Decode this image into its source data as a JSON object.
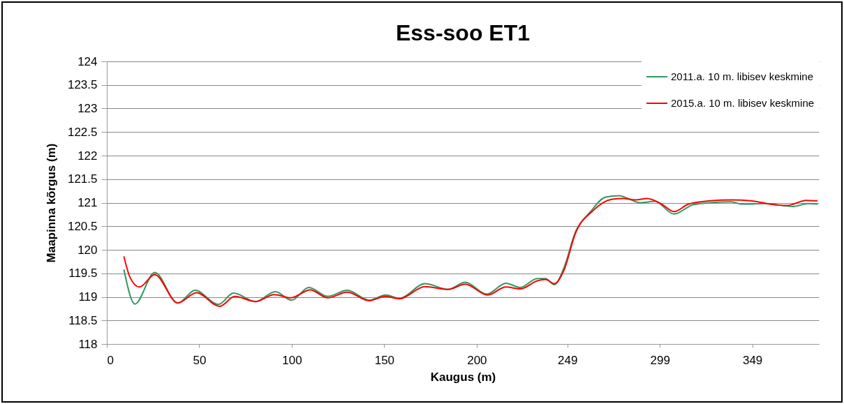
{
  "chart_data": {
    "type": "line",
    "title": "Ess-soo ET1",
    "xlabel": "Kaugus  (m)",
    "ylabel": "Maapinna kõrgus (m)",
    "xlim": [
      0,
      385
    ],
    "xticks": [
      0,
      50,
      100,
      150,
      200,
      249,
      299,
      349
    ],
    "ylim": [
      118,
      124
    ],
    "yticks": [
      118,
      118.5,
      119,
      119.5,
      120,
      120.5,
      121,
      121.5,
      122,
      122.5,
      123,
      123.5,
      124
    ],
    "grid": "y",
    "legend": "top right",
    "marker": "none",
    "line_style": "solid",
    "series": [
      {
        "name": "2011.a. 10 m. libisev keskmine",
        "color": "#2e9a5e",
        "x": [
          9.3,
          15.2,
          25.9,
          38.4,
          47.8,
          60.4,
          68.5,
          80.5,
          91.1,
          99.9,
          109.3,
          119.4,
          130,
          141.9,
          150.7,
          158.3,
          172,
          184.6,
          193.8,
          205.4,
          215.8,
          223.6,
          232.7,
          237.2,
          242,
          247,
          253.5,
          261.3,
          269.7,
          276.8,
          288.5,
          296.3,
          306.7,
          317.1,
          326.2,
          337.8,
          343,
          356,
          371,
          379.4,
          384
        ],
        "values": [
          119.57,
          118.85,
          119.52,
          118.87,
          119.14,
          118.84,
          119.08,
          118.9,
          119.11,
          118.93,
          119.2,
          119.01,
          119.14,
          118.93,
          119.04,
          118.97,
          119.28,
          119.16,
          119.31,
          119.06,
          119.29,
          119.2,
          119.39,
          119.39,
          119.26,
          119.6,
          120.39,
          120.8,
          121.12,
          121.15,
          121.0,
          121.03,
          120.76,
          120.96,
          121.0,
          121.02,
          120.97,
          120.98,
          120.92,
          120.98,
          120.97
        ]
      },
      {
        "name": "2015.a. 10 m. libisev keskmine",
        "color": "#ff0000",
        "x": [
          9.3,
          12.6,
          17.6,
          25.9,
          38.4,
          48.5,
          61,
          69.2,
          80.5,
          90.5,
          99.3,
          110,
          119.4,
          130,
          141.9,
          150.7,
          158.3,
          172,
          184.6,
          193.8,
          205.8,
          215.8,
          223.6,
          232.7,
          237.2,
          242,
          247,
          253.5,
          262.6,
          272.8,
          279.2,
          285.7,
          292.2,
          300,
          306.7,
          314.5,
          326.2,
          337.8,
          348.2,
          362.5,
          367.7,
          378,
          384
        ],
        "values": [
          119.85,
          119.41,
          119.21,
          119.47,
          118.87,
          119.09,
          118.8,
          119.01,
          118.9,
          119.05,
          118.98,
          119.15,
          118.98,
          119.1,
          118.92,
          119.01,
          118.96,
          119.22,
          119.16,
          119.27,
          119.04,
          119.21,
          119.17,
          119.34,
          119.37,
          119.28,
          119.55,
          120.36,
          120.82,
          121.07,
          121.09,
          121.06,
          121.09,
          120.97,
          120.81,
          120.97,
          121.04,
          121.06,
          121.04,
          120.95,
          120.94,
          121.05,
          121.04
        ]
      }
    ]
  }
}
